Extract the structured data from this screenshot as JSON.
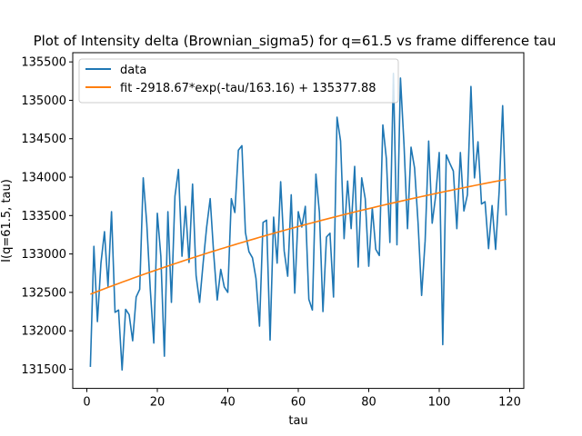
{
  "chart_data": {
    "type": "line",
    "title": "Plot of Intensity delta (Brownian_sigma5) for q=61.5 vs frame difference tau",
    "xlabel": "tau",
    "ylabel": "I(q=61.5, tau)",
    "xlim": [
      -4,
      124
    ],
    "ylim": [
      131250,
      135620
    ],
    "xticks": [
      0,
      20,
      40,
      60,
      80,
      100,
      120
    ],
    "yticks": [
      131500,
      132000,
      132500,
      133000,
      133500,
      134000,
      134500,
      135000,
      135500
    ],
    "grid": false,
    "legend_position": "top-left",
    "series": [
      {
        "name": "data",
        "color": "#1f77b4",
        "x": [
          1,
          2,
          3,
          4,
          5,
          6,
          7,
          8,
          9,
          10,
          11,
          12,
          13,
          14,
          15,
          16,
          17,
          18,
          19,
          20,
          21,
          22,
          23,
          24,
          25,
          26,
          27,
          28,
          29,
          30,
          31,
          32,
          33,
          34,
          35,
          36,
          37,
          38,
          39,
          40,
          41,
          42,
          43,
          44,
          45,
          46,
          47,
          48,
          49,
          50,
          51,
          52,
          53,
          54,
          55,
          56,
          57,
          58,
          59,
          60,
          61,
          62,
          63,
          64,
          65,
          66,
          67,
          68,
          69,
          70,
          71,
          72,
          73,
          74,
          75,
          76,
          77,
          78,
          79,
          80,
          81,
          82,
          83,
          84,
          85,
          86,
          87,
          88,
          89,
          90,
          91,
          92,
          93,
          94,
          95,
          96,
          97,
          98,
          99,
          100,
          101,
          102,
          103,
          104,
          105,
          106,
          107,
          108,
          109,
          110,
          111,
          112,
          113,
          114,
          115,
          116,
          117,
          118,
          119
        ],
        "y": [
          131530,
          133100,
          132120,
          132880,
          133290,
          132580,
          133550,
          132240,
          132270,
          131490,
          132280,
          132210,
          131870,
          132440,
          132540,
          133990,
          133400,
          132540,
          131840,
          133530,
          132970,
          131670,
          133550,
          132370,
          133750,
          134100,
          132970,
          133620,
          132890,
          133910,
          132720,
          132370,
          132880,
          133350,
          133720,
          133000,
          132400,
          132800,
          132570,
          132500,
          133720,
          133540,
          134350,
          134410,
          133280,
          133030,
          132950,
          132680,
          132060,
          133410,
          133440,
          131880,
          133480,
          132880,
          133940,
          133040,
          132710,
          133770,
          132490,
          133550,
          133350,
          133620,
          132410,
          132270,
          134040,
          133540,
          132250,
          133220,
          133270,
          132440,
          134780,
          134470,
          133200,
          133950,
          133330,
          134140,
          132830,
          133990,
          133720,
          132840,
          133600,
          133060,
          132980,
          134680,
          134240,
          133150,
          135350,
          133120,
          135290,
          134430,
          133330,
          134390,
          134120,
          133400,
          132460,
          133170,
          134470,
          133400,
          133760,
          134320,
          131820,
          134290,
          134180,
          134080,
          133330,
          134320,
          133560,
          133770,
          135180,
          133990,
          134460,
          133650,
          133680,
          133070,
          133630,
          133060,
          133810,
          134930,
          133500
        ]
      },
      {
        "name": "fit -2918.67*exp(-tau/163.16) + 135377.88",
        "color": "#ff7f0e",
        "function": {
          "A": -2918.67,
          "tau0": 163.16,
          "C": 135377.88
        },
        "x_range": [
          1,
          119
        ]
      }
    ]
  }
}
